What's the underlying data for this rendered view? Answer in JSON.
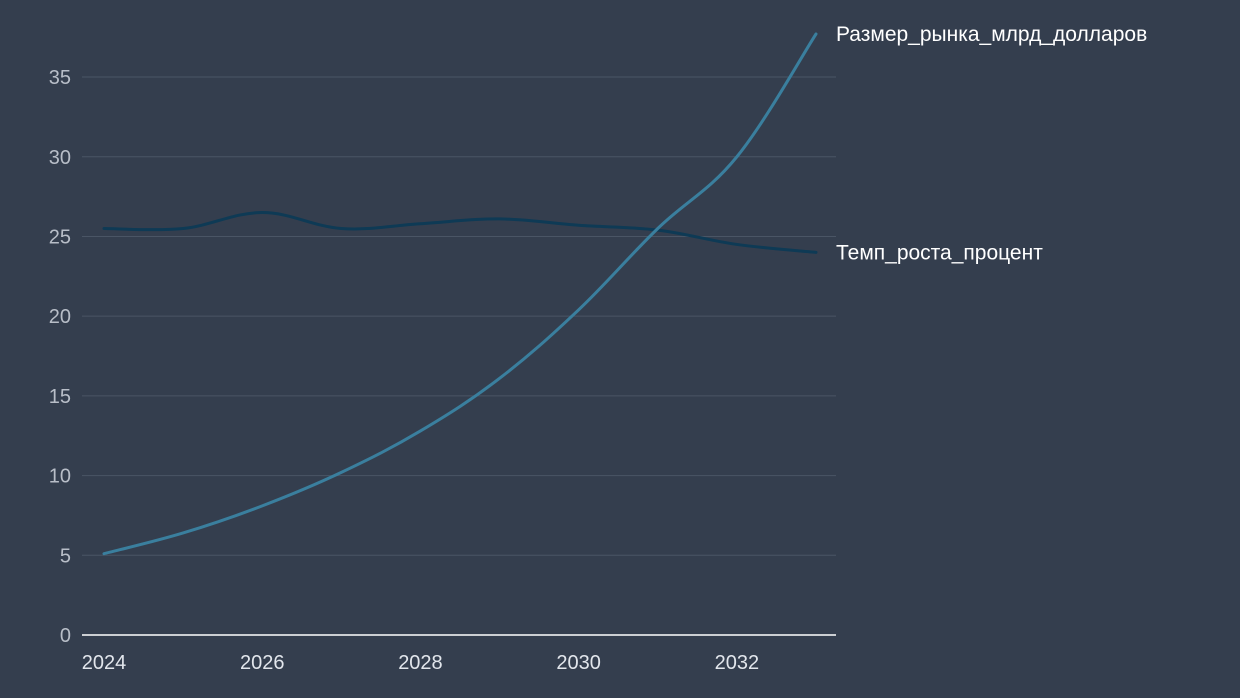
{
  "chart_data": {
    "type": "line",
    "x": [
      2024,
      2025,
      2026,
      2027,
      2028,
      2029,
      2030,
      2031,
      2032,
      2033
    ],
    "series": [
      {
        "name": "Размер_рынка_млрд_долларов",
        "values": [
          5.1,
          6.4,
          8.1,
          10.2,
          12.8,
          16.1,
          20.4,
          25.5,
          30.0,
          37.7
        ],
        "color": "#3a7f9e"
      },
      {
        "name": "Темп_роста_процент",
        "values": [
          25.5,
          25.5,
          26.5,
          25.5,
          25.8,
          26.1,
          25.7,
          25.4,
          24.5,
          24.0
        ],
        "color": "#0e3a55"
      }
    ],
    "y_ticks": [
      "0",
      "5",
      "10",
      "15",
      "20",
      "25",
      "30",
      "35"
    ],
    "x_ticks": [
      "2024",
      "2026",
      "2028",
      "2030",
      "2032"
    ],
    "xlim": [
      2024,
      2033
    ],
    "ylim": [
      0,
      37.7
    ],
    "grid": "horizontal",
    "legend": "line-end labels",
    "title": "",
    "xlabel": "",
    "ylabel": ""
  }
}
